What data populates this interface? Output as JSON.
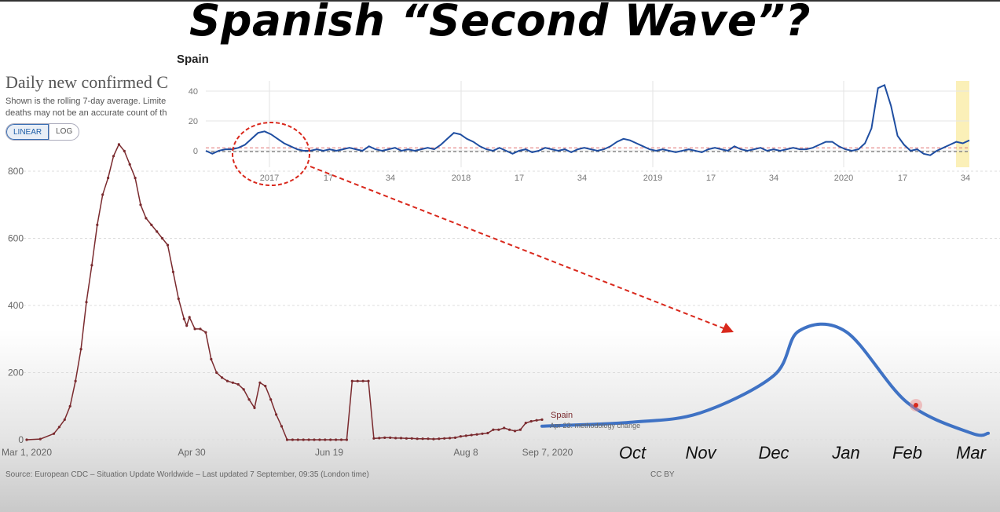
{
  "slide": {
    "title": "Spanish “Second Wave”?"
  },
  "main": {
    "title": "Daily new confirmed C",
    "subtitle_line1": "Shown is the rolling 7-day average. Limite",
    "subtitle_line2": "deaths may not be an accurate count of th",
    "toggle": {
      "linear": "LINEAR",
      "log": "LOG"
    },
    "series_label": "Spain",
    "annotation": "Apr 23: methodology change",
    "source": "Source: European CDC – Situation Update Worldwide – Last updated 7 September, 09:35 (London time)",
    "license": "CC BY"
  },
  "inset": {
    "title": "Spain"
  },
  "forecast": {
    "months": [
      "Oct",
      "Nov",
      "Dec",
      "Jan",
      "Feb",
      "Mar"
    ]
  },
  "colors": {
    "main_line": "#7a2a2e",
    "inset_line": "#1f4ea1",
    "forecast_line": "#3f72c4",
    "callout": "#d9281c",
    "highlight": "#fbf0b8"
  },
  "chart_data": [
    {
      "type": "line",
      "title": "Daily new confirmed C",
      "x_tick_labels": [
        "Mar 1, 2020",
        "Apr 30",
        "Jun 19",
        "Aug 8",
        "Sep 7, 2020"
      ],
      "y_tick_labels": [
        "0",
        "200",
        "400",
        "600",
        "800"
      ],
      "ylim": [
        0,
        900
      ],
      "grid": true,
      "series": [
        {
          "name": "Spain",
          "x": [
            0,
            5,
            10,
            12,
            14,
            16,
            18,
            20,
            22,
            24,
            26,
            28,
            30,
            32,
            34,
            36,
            38,
            40,
            42,
            44,
            46,
            48,
            50,
            52,
            54,
            56,
            58,
            59,
            60,
            62,
            64,
            66,
            68,
            70,
            72,
            74,
            76,
            78,
            80,
            82,
            84,
            86,
            88,
            90,
            92,
            94,
            96,
            98,
            100,
            102,
            104,
            106,
            108,
            110,
            112,
            114,
            116,
            118,
            120,
            122,
            124,
            126,
            128,
            130,
            132,
            134,
            136,
            138,
            140,
            142,
            144,
            146,
            148,
            150,
            152,
            154,
            156,
            158,
            160,
            162,
            164,
            166,
            168,
            170,
            172,
            174,
            176,
            178,
            180,
            182,
            184,
            186,
            188,
            190
          ],
          "values": [
            0,
            2,
            18,
            38,
            60,
            100,
            175,
            270,
            410,
            520,
            640,
            730,
            780,
            845,
            880,
            860,
            820,
            780,
            700,
            660,
            640,
            620,
            600,
            580,
            500,
            420,
            360,
            340,
            365,
            330,
            330,
            320,
            240,
            200,
            185,
            175,
            170,
            165,
            150,
            120,
            95,
            170,
            160,
            120,
            75,
            40,
            0,
            0,
            0,
            0,
            0,
            0,
            0,
            0,
            0,
            0,
            0,
            0,
            175,
            175,
            175,
            175,
            4,
            5,
            6,
            6,
            5,
            5,
            4,
            4,
            3,
            3,
            3,
            2,
            3,
            4,
            5,
            6,
            10,
            12,
            14,
            16,
            18,
            20,
            30,
            30,
            35,
            30,
            26,
            30,
            50,
            55,
            58,
            60
          ]
        }
      ]
    },
    {
      "type": "line",
      "title": "Spain",
      "x_tick_labels": [
        "2017",
        "17",
        "34",
        "2018",
        "17",
        "34",
        "2019",
        "17",
        "34",
        "2020",
        "17",
        "34"
      ],
      "y_tick_labels": [
        "0",
        "20",
        "40"
      ],
      "ylim": [
        -5,
        45
      ],
      "series": [
        {
          "values": [
            0,
            -2,
            0,
            1,
            1,
            2,
            4,
            8,
            12,
            13,
            11,
            8,
            5,
            3,
            1,
            0,
            0,
            1,
            0,
            1,
            0,
            1,
            2,
            1,
            0,
            3,
            1,
            0,
            1,
            2,
            0,
            1,
            0,
            1,
            2,
            1,
            4,
            8,
            12,
            11,
            8,
            6,
            3,
            1,
            0,
            2,
            0,
            -2,
            0,
            1,
            -1,
            0,
            2,
            1,
            0,
            1,
            -1,
            1,
            2,
            1,
            0,
            1,
            3,
            6,
            8,
            7,
            5,
            3,
            1,
            0,
            1,
            0,
            -1,
            0,
            1,
            0,
            -1,
            1,
            2,
            1,
            0,
            3,
            1,
            0,
            1,
            2,
            0,
            1,
            0,
            1,
            2,
            1,
            1,
            2,
            4,
            6,
            6,
            3,
            1,
            0,
            1,
            5,
            15,
            42,
            44,
            30,
            10,
            4,
            0,
            1,
            -2,
            -3,
            0,
            2,
            4,
            6,
            5,
            7
          ]
        }
      ]
    },
    {
      "type": "line",
      "categories": [
        "Oct",
        "Nov",
        "Dec",
        "Jan",
        "Feb",
        "Mar"
      ],
      "series": [
        {
          "values": [
            52,
            80,
            190,
            320,
            110,
            20
          ]
        }
      ]
    }
  ]
}
